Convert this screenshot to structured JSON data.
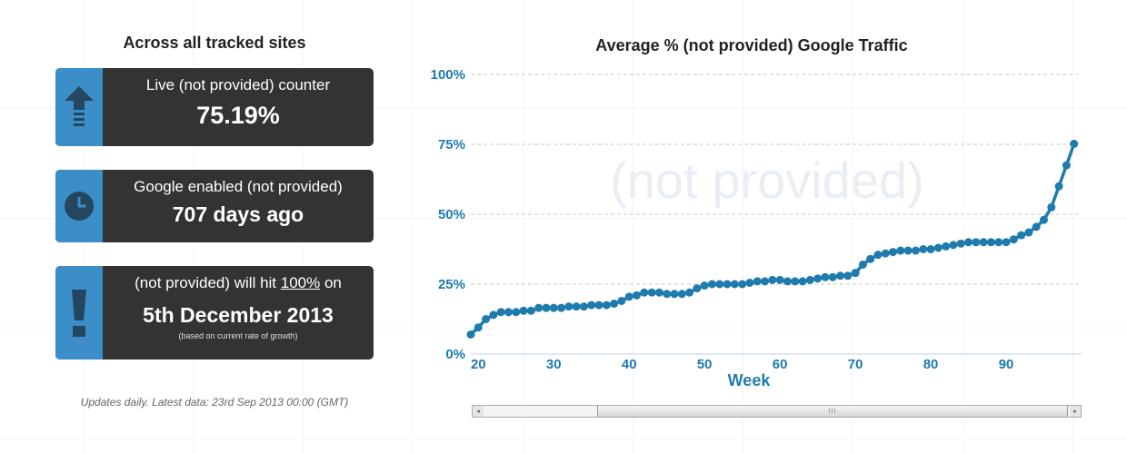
{
  "left": {
    "title": "Across all tracked sites",
    "cards": [
      {
        "label": "Live (not provided) counter",
        "value": "75.19%"
      },
      {
        "label": "Google enabled (not provided)",
        "value": "707 days ago"
      },
      {
        "label_before": "(not provided) will hit ",
        "label_underlined": "100%",
        "label_after": " on",
        "value": "5th December 2013",
        "note": "(based on current rate of growth)"
      }
    ],
    "footnote": "Updates daily. Latest data: 23rd Sep 2013 00:00 (GMT)"
  },
  "colors": {
    "accent": "#3c8ec8",
    "card_bg": "#333333",
    "series": "#1f7bad",
    "watermark": "#e8eef4"
  },
  "icons": {
    "card1": "up-arrow-icon",
    "card2": "clock-icon",
    "card3": "exclamation-icon"
  },
  "chart_data": {
    "type": "line",
    "title": "Average % (not provided) Google Traffic",
    "xlabel": "Week",
    "ylabel": "",
    "watermark": "(not provided)",
    "xlim": [
      19,
      100
    ],
    "ylim": [
      0,
      100
    ],
    "x_ticks": [
      20,
      30,
      40,
      50,
      60,
      70,
      80,
      90
    ],
    "y_ticks": [
      0,
      25,
      50,
      75,
      100
    ],
    "y_tick_labels": [
      "0%",
      "25%",
      "50%",
      "75%",
      "100%"
    ],
    "grid": "horizontal-dashed",
    "series": [
      {
        "x": [
          19,
          20,
          21,
          22,
          23,
          24,
          25,
          26,
          27,
          28,
          29,
          30,
          31,
          32,
          33,
          34,
          35,
          36,
          37,
          38,
          39,
          40,
          41,
          42,
          43,
          44,
          45,
          46,
          47,
          48,
          49,
          50,
          51,
          52,
          53,
          54,
          55,
          56,
          57,
          58,
          59,
          60,
          61,
          62,
          63,
          64,
          65,
          66,
          67,
          68,
          69,
          70,
          71,
          72,
          73,
          74,
          75,
          76,
          77,
          78,
          79,
          80,
          81,
          82,
          83,
          84,
          85,
          86,
          87,
          88,
          89,
          90,
          91,
          92,
          93,
          94,
          95,
          96,
          97,
          98,
          99
        ],
        "y": [
          7,
          9.5,
          12.5,
          14,
          15,
          15,
          15,
          15.5,
          15.5,
          16.5,
          16.5,
          16.5,
          16.5,
          17,
          17,
          17,
          17.5,
          17.5,
          17.5,
          18,
          19,
          20.5,
          21,
          22,
          22,
          22,
          21.5,
          21.5,
          21.5,
          22,
          23.5,
          24.5,
          25,
          25,
          25,
          25,
          25,
          25.5,
          26,
          26,
          26.5,
          26.5,
          26,
          26,
          26,
          26.5,
          27,
          27.5,
          27.5,
          28,
          28,
          29,
          32,
          34,
          35.5,
          36,
          36.5,
          37,
          37,
          37,
          37.5,
          37.5,
          38,
          38.5,
          39,
          39.5,
          40,
          40,
          40,
          40,
          40,
          40,
          41,
          42.5,
          43.5,
          45.5,
          48,
          52.5,
          60,
          67.5,
          75.19
        ]
      }
    ]
  },
  "scrollbar": {
    "thumb_grip": "III",
    "left_arrow": "◂",
    "right_arrow": "▸"
  }
}
